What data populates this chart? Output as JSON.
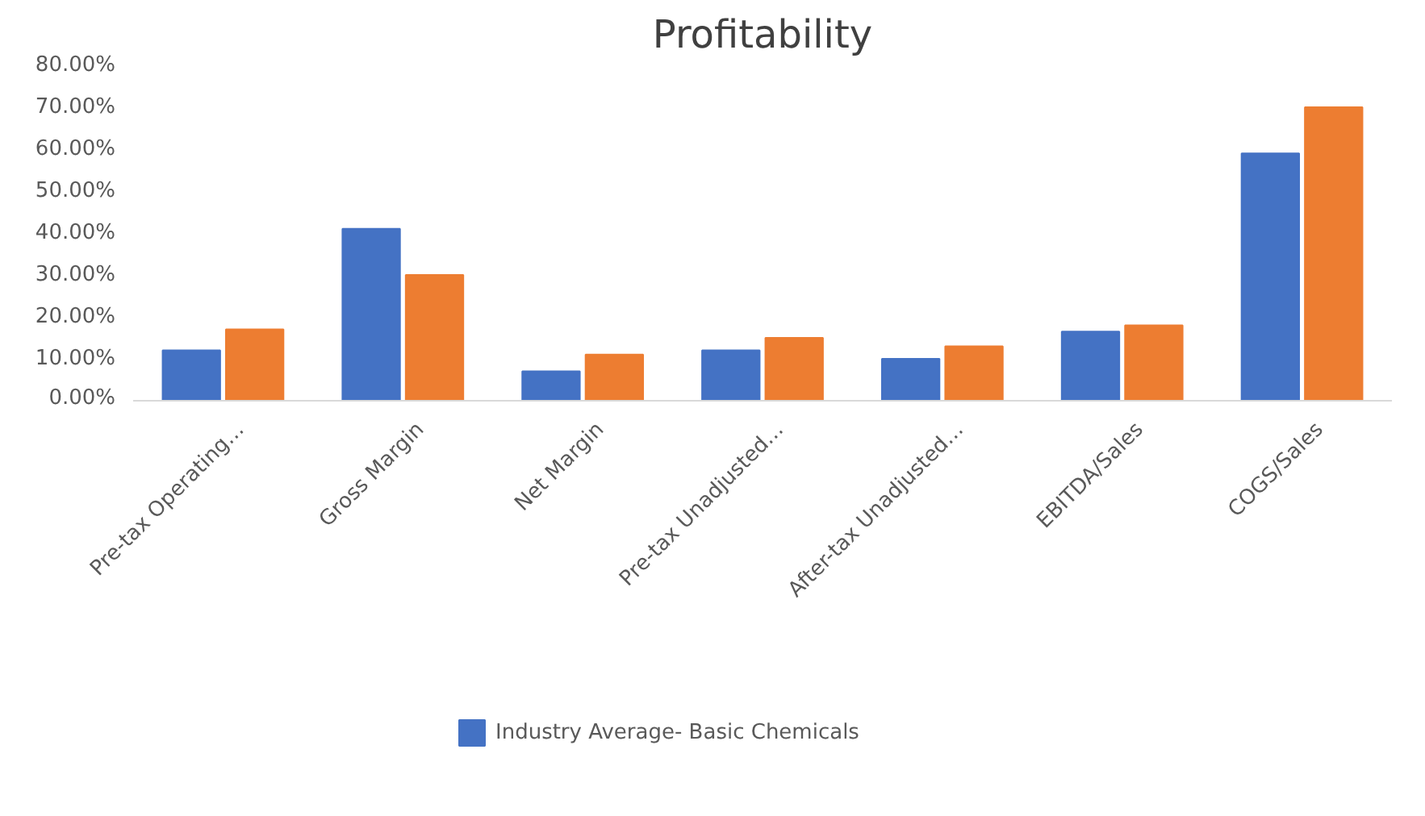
{
  "chart_data": {
    "type": "bar",
    "title": "Profitability",
    "categories": [
      "Pre-tax Operating…",
      "Gross Margin",
      "Net Margin",
      "Pre-tax Unadjusted…",
      "After-tax Unadjusted…",
      "EBITDA/Sales",
      "COGS/Sales"
    ],
    "series": [
      {
        "name": "Industry Average- Basic Chemicals",
        "color": "#4472c4",
        "values": [
          12,
          41,
          7,
          12,
          10,
          16.5,
          59
        ]
      },
      {
        "color": "#ed7d31",
        "values": [
          17,
          30,
          11,
          15,
          13,
          18,
          70
        ]
      }
    ],
    "ylim": [
      0,
      80
    ],
    "yticks": [
      {
        "value": 0,
        "label": "0.00%"
      },
      {
        "value": 10,
        "label": "10.00%"
      },
      {
        "value": 20,
        "label": "20.00%"
      },
      {
        "value": 30,
        "label": "30.00%"
      },
      {
        "value": 40,
        "label": "40.00%"
      },
      {
        "value": 50,
        "label": "50.00%"
      },
      {
        "value": 60,
        "label": "60.00%"
      },
      {
        "value": 70,
        "label": "70.00%"
      },
      {
        "value": 80,
        "label": "80.00%"
      }
    ],
    "grid": false,
    "legend": "bottom"
  }
}
